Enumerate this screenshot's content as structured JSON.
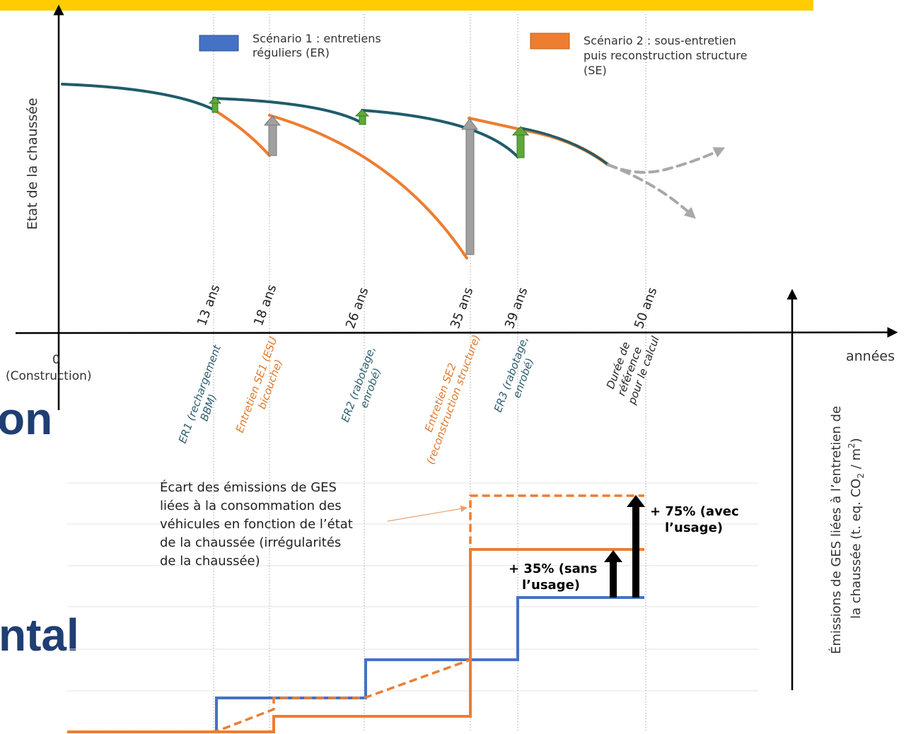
{
  "colors": {
    "banner": "#FFCC00",
    "title": "#1F3E73",
    "scenario1": "#4472C4",
    "scenario2": "#ED7D31",
    "condition_curve": "#1F5C6B",
    "maintenance_arrow": "#5FA83C",
    "reconstruction_arrow": "#A0A0A0"
  },
  "slide_title_fragments": [
    "on",
    "ntal"
  ],
  "legend": {
    "scenario1": [
      "Scénario 1 : entretiens",
      "réguliers (ER)"
    ],
    "scenario2": [
      "Scénario 2 : sous-entretien",
      "puis reconstruction structure",
      "(SE)"
    ]
  },
  "axes": {
    "y_top": "Etat de la chaussée",
    "x": "années",
    "origin": [
      "0",
      "(Construction)"
    ],
    "y_bottom": [
      "Émissions de GES liées à l’entretien de",
      "la chaussée (t. eq. CO",
      "2",
      " / m",
      "2",
      ")"
    ]
  },
  "milestones": [
    {
      "years": "13 ans",
      "event": [
        "ER1 (rechargement",
        "BBM)"
      ],
      "scenario": "ER"
    },
    {
      "years": "18 ans",
      "event": [
        "Entretien SE1 (ESU",
        "bicouche)"
      ],
      "scenario": "SE"
    },
    {
      "years": "26 ans",
      "event": [
        "ER2 (rabotage,",
        "enrobé)"
      ],
      "scenario": "ER"
    },
    {
      "years": "35 ans",
      "event": [
        "Entretien SE2",
        "(reconstruction structure)"
      ],
      "scenario": "SE"
    },
    {
      "years": "39 ans",
      "event": [
        "ER3 (rabotage,",
        "enrobé)"
      ],
      "scenario": "ER"
    },
    {
      "years": "50 ans",
      "event": [
        "Durée de",
        "référence",
        "pour le calcul"
      ],
      "scenario": "ref"
    }
  ],
  "annotations": {
    "ges_gap": [
      "Écart des émissions de GES",
      "liées à la consommation des",
      "véhicules en fonction de l’état",
      "de la chaussée (irrégularités",
      "de la chaussée)"
    ],
    "plus35": [
      "+ 35% (sans",
      "l’usage)"
    ],
    "plus75": [
      "+ 75% (avec",
      "l’usage)"
    ]
  }
}
